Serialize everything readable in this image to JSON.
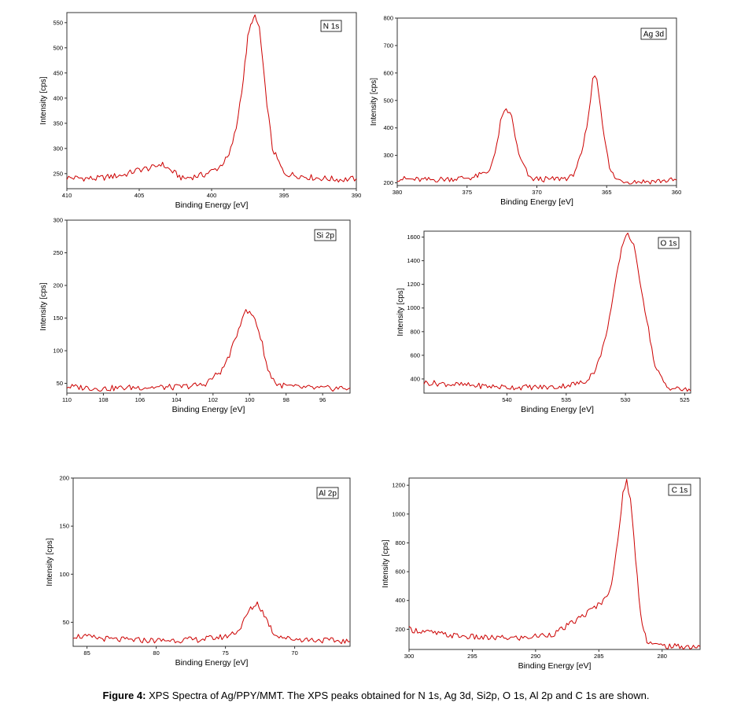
{
  "figure": {
    "caption_label": "Figure 4:",
    "caption_text": " XPS Spectra of Ag/PPY/MMT. The XPS peaks obtained for N 1s, Ag 3d, Si2p, O 1s, Al 2p and C 1s are shown."
  },
  "colors": {
    "line": "#cc0000",
    "axis": "#333333",
    "text": "#000000"
  },
  "chart_data": [
    {
      "type": "line",
      "legend": "N 1s",
      "xlabel": "Binding Energy [eV]",
      "ylabel": "Intensity [cps]",
      "xlim": [
        410,
        390
      ],
      "ylim": [
        220,
        570
      ],
      "xticks": [
        410,
        405,
        400,
        395,
        390
      ],
      "yticks": [
        250,
        300,
        350,
        400,
        450,
        500,
        550
      ],
      "series": [
        {
          "x": [
            410,
            408,
            406,
            405,
            404,
            403.5,
            402,
            400.5,
            399.5,
            398.8,
            398.3,
            397.8,
            397.5,
            397.2,
            397.0,
            396.7,
            396.3,
            395.8,
            395,
            393,
            391,
            390
          ],
          "y": [
            242,
            240,
            248,
            258,
            262,
            270,
            240,
            248,
            262,
            285,
            340,
            440,
            520,
            555,
            560,
            540,
            420,
            300,
            250,
            242,
            238,
            240
          ]
        }
      ]
    },
    {
      "type": "line",
      "legend": "Ag 3d",
      "xlabel": "Binding Energy [eV]",
      "ylabel": "Intensity [cps]",
      "xlim": [
        380,
        360
      ],
      "ylim": [
        190,
        800
      ],
      "xticks": [
        380,
        375,
        370,
        365,
        360
      ],
      "yticks": [
        200,
        300,
        400,
        500,
        600,
        700,
        800
      ],
      "series": [
        {
          "x": [
            380,
            378,
            376,
            374.5,
            373.5,
            373.0,
            372.6,
            372.2,
            371.8,
            371.3,
            370.5,
            369,
            367.5,
            366.8,
            366.3,
            366.0,
            365.7,
            365.3,
            364.8,
            364.3,
            363.5,
            362,
            360
          ],
          "y": [
            215,
            210,
            215,
            220,
            240,
            300,
            420,
            470,
            440,
            300,
            215,
            212,
            220,
            300,
            440,
            585,
            580,
            420,
            250,
            212,
            205,
            205,
            210
          ]
        }
      ]
    },
    {
      "type": "line",
      "legend": "Si 2p",
      "xlabel": "Binding Energy [eV]",
      "ylabel": "Intensity [cps]",
      "xlim": [
        110,
        94.5
      ],
      "ylim": [
        35,
        300
      ],
      "xticks": [
        110,
        108,
        106,
        104,
        102,
        100,
        98,
        96
      ],
      "yticks": [
        50,
        100,
        150,
        200,
        250,
        300
      ],
      "series": [
        {
          "x": [
            110,
            108,
            106,
            104,
            102.5,
            101.5,
            101,
            100.7,
            100.3,
            100,
            99.7,
            99.3,
            99,
            98.5,
            97.5,
            96,
            94.5
          ],
          "y": [
            45,
            42,
            44,
            44,
            48,
            70,
            100,
            125,
            160,
            158,
            150,
            110,
            70,
            48,
            44,
            42,
            43
          ]
        }
      ]
    },
    {
      "type": "line",
      "legend": "O 1s",
      "xlabel": "Binding Energy [eV]",
      "ylabel": "Intensity [cps]",
      "xlim": [
        547,
        524.5
      ],
      "ylim": [
        280,
        1650
      ],
      "xticks": [
        540,
        535,
        530,
        525
      ],
      "yticks": [
        400,
        600,
        800,
        1000,
        1200,
        1400,
        1600
      ],
      "series": [
        {
          "x": [
            547,
            544,
            540,
            536,
            533.5,
            532.5,
            531.8,
            531.2,
            530.6,
            530.2,
            529.8,
            529.3,
            528.8,
            528.2,
            527.5,
            526.5,
            524.5
          ],
          "y": [
            370,
            350,
            330,
            330,
            370,
            480,
            700,
            1000,
            1350,
            1560,
            1640,
            1520,
            1250,
            900,
            500,
            330,
            300
          ]
        }
      ]
    },
    {
      "type": "line",
      "legend": "Al 2p",
      "xlabel": "Binding Energy [eV]",
      "ylabel": "Intensity [cps]",
      "xlim": [
        86,
        66
      ],
      "ylim": [
        25,
        200
      ],
      "xticks": [
        85,
        80,
        75,
        70
      ],
      "yticks": [
        50,
        100,
        150,
        200
      ],
      "series": [
        {
          "x": [
            86,
            83,
            80,
            77,
            75,
            74,
            73.3,
            72.7,
            72.2,
            71.5,
            70.5,
            69,
            66
          ],
          "y": [
            36,
            32,
            31,
            32,
            35,
            42,
            62,
            70,
            58,
            38,
            33,
            32,
            30
          ]
        }
      ]
    },
    {
      "type": "line",
      "legend": "C 1s",
      "xlabel": "Binding Energy [eV]",
      "ylabel": "Intensity [cps]",
      "xlim": [
        300,
        277
      ],
      "ylim": [
        60,
        1250
      ],
      "xticks": [
        300,
        295,
        290,
        285,
        280
      ],
      "yticks": [
        200,
        400,
        600,
        800,
        1000,
        1200
      ],
      "series": [
        {
          "x": [
            300,
            297,
            294,
            291,
            288.5,
            287,
            285.5,
            284.5,
            284,
            283.5,
            283.1,
            282.8,
            282.5,
            282.1,
            281.7,
            281.2,
            280.5,
            279,
            277
          ],
          "y": [
            200,
            160,
            140,
            140,
            170,
            250,
            340,
            410,
            520,
            800,
            1150,
            1230,
            1100,
            700,
            300,
            120,
            90,
            80,
            80
          ]
        }
      ]
    }
  ]
}
